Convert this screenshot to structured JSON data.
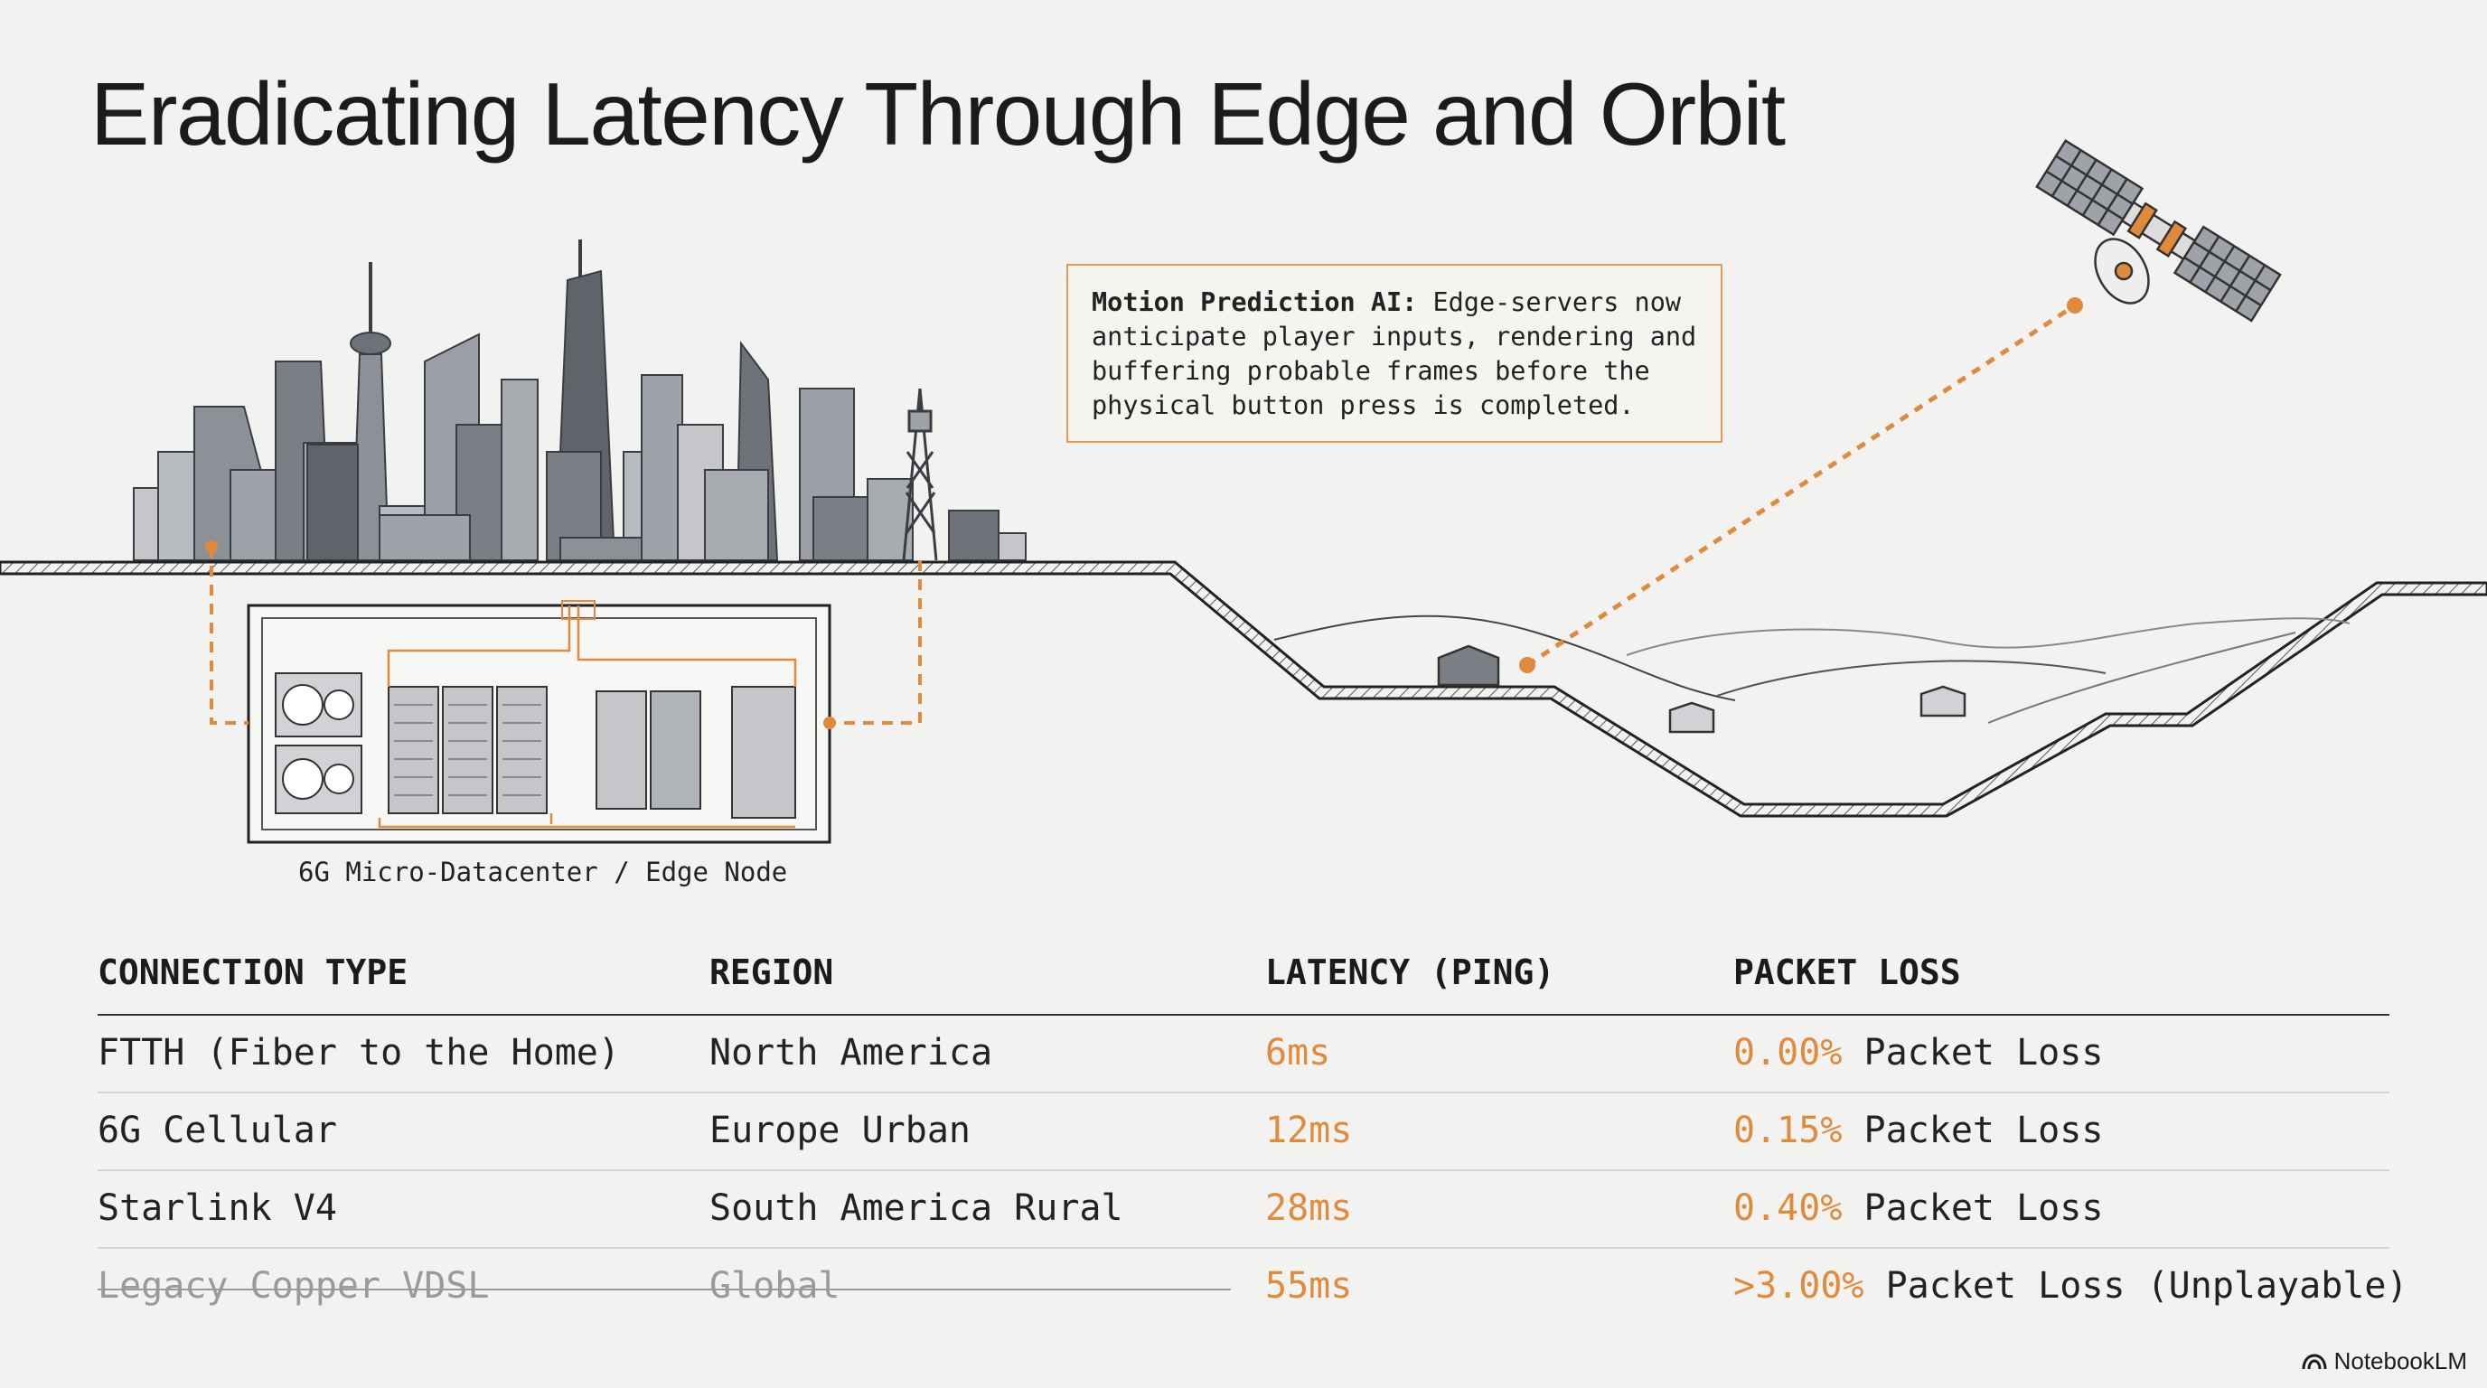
{
  "title": "Eradicating Latency Through Edge and Orbit",
  "callout": {
    "heading": "Motion Prediction AI:",
    "body": " Edge-servers now anticipate player inputs, rendering and buffering probable frames before the physical button press is completed."
  },
  "datacenter_caption": "6G Micro-Datacenter / Edge Node",
  "table": {
    "headers": [
      "CONNECTION TYPE",
      "REGION",
      "LATENCY (PING)",
      "PACKET LOSS"
    ],
    "rows": [
      {
        "type": "FTTH (Fiber to the Home)",
        "region": "North America",
        "latency": "6ms",
        "loss_pct": "0.00%",
        "loss_suffix": " Packet Loss"
      },
      {
        "type": "6G Cellular",
        "region": "Europe Urban",
        "latency": "12ms",
        "loss_pct": "0.15%",
        "loss_suffix": " Packet Loss"
      },
      {
        "type": "Starlink V4",
        "region": "South America Rural",
        "latency": "28ms",
        "loss_pct": "0.40%",
        "loss_suffix": " Packet Loss"
      },
      {
        "type": "Legacy Copper VDSL",
        "region": "Global",
        "latency": "55ms",
        "loss_pct": ">3.00%",
        "loss_suffix": " Packet Loss (Unplayable)"
      }
    ]
  },
  "brand": "NotebookLM",
  "colors": {
    "accent": "#e08a3c",
    "ink": "#1b1b1b",
    "background": "#f2f2f0"
  }
}
